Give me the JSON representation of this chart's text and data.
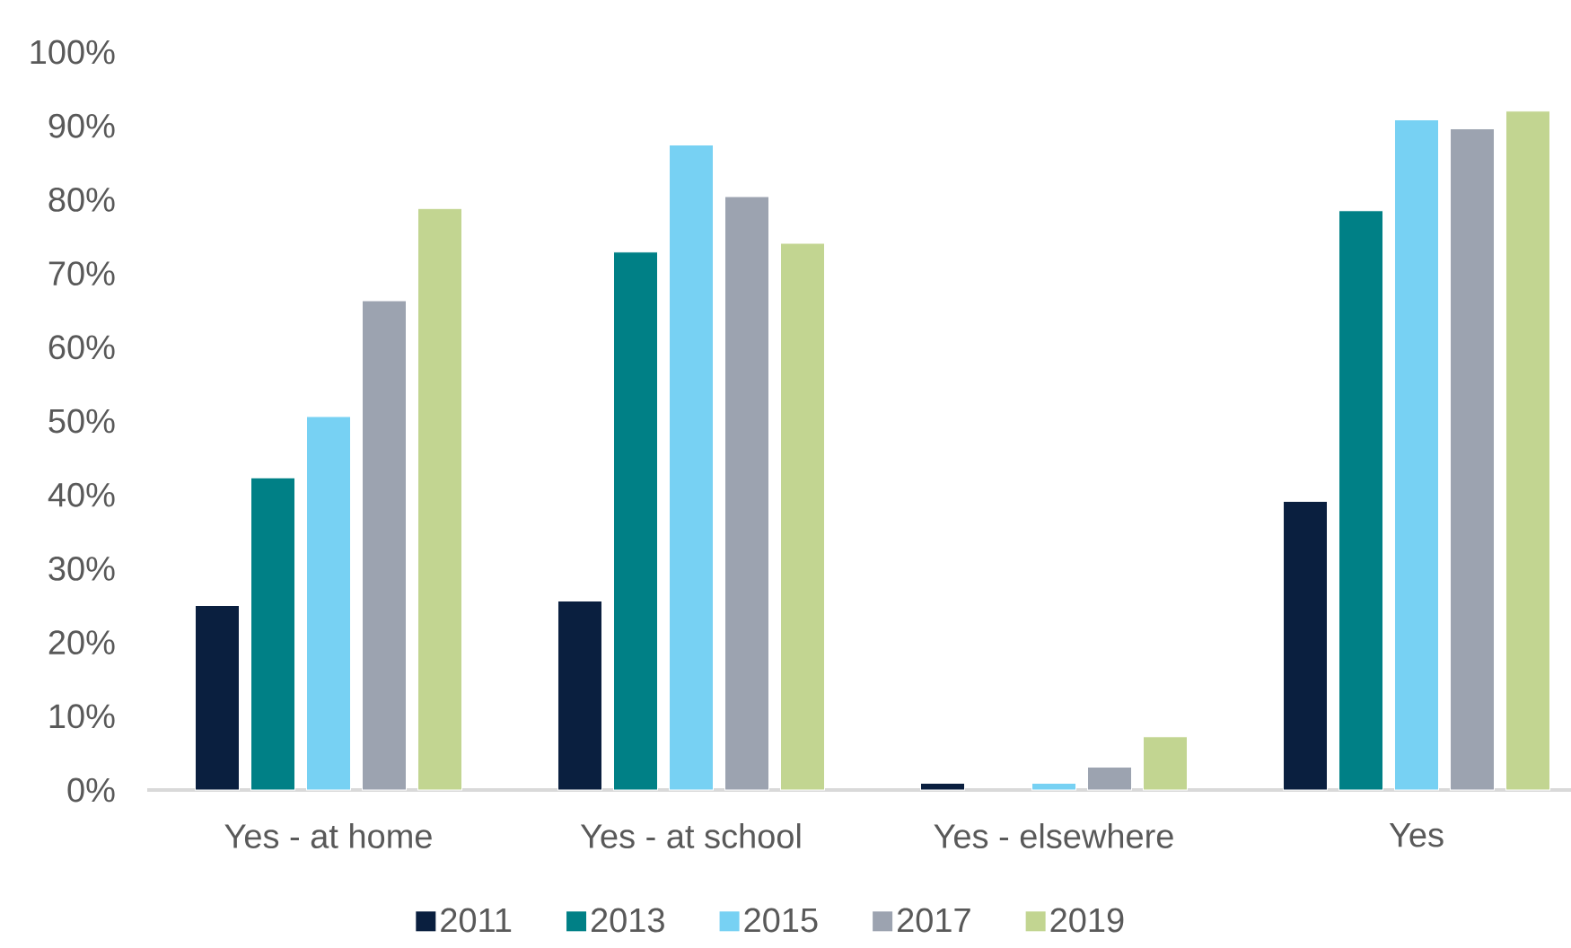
{
  "chart_data": {
    "type": "bar",
    "categories": [
      "Yes - at home",
      "Yes - at school",
      "Yes - elsewhere",
      "Yes"
    ],
    "series": [
      {
        "name": "2011",
        "color": "#0a1f3f",
        "values": [
          25.0,
          25.6,
          0.9,
          39.1
        ]
      },
      {
        "name": "2013",
        "color": "#008086",
        "values": [
          42.3,
          72.9,
          null,
          78.5
        ]
      },
      {
        "name": "2015",
        "color": "#77d1f3",
        "values": [
          50.6,
          87.4,
          0.9,
          90.8
        ]
      },
      {
        "name": "2017",
        "color": "#9ca3b0",
        "values": [
          66.3,
          80.4,
          3.1,
          89.6
        ]
      },
      {
        "name": "2019",
        "color": "#c2d591",
        "values": [
          78.8,
          74.1,
          7.2,
          92.0
        ]
      }
    ],
    "ylim": [
      0,
      100
    ],
    "yticks": [
      {
        "value": 0,
        "label": "0%"
      },
      {
        "value": 10,
        "label": "10%"
      },
      {
        "value": 20,
        "label": "20%"
      },
      {
        "value": 30,
        "label": "30%"
      },
      {
        "value": 40,
        "label": "40%"
      },
      {
        "value": 50,
        "label": "50%"
      },
      {
        "value": 60,
        "label": "60%"
      },
      {
        "value": 70,
        "label": "70%"
      },
      {
        "value": 80,
        "label": "80%"
      },
      {
        "value": 90,
        "label": "90%"
      },
      {
        "value": 100,
        "label": "100%"
      }
    ],
    "legend": "bottom"
  }
}
